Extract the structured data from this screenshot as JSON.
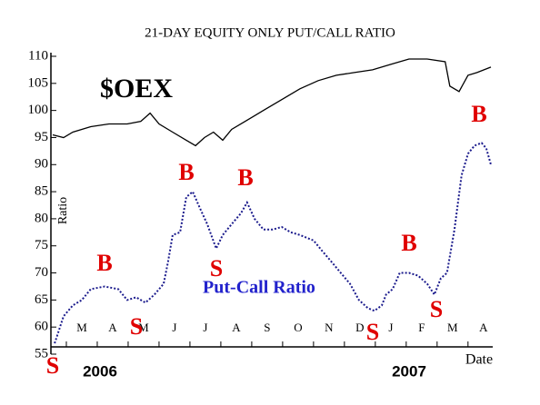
{
  "chart_data": {
    "type": "line",
    "title": "21-DAY EQUITY ONLY PUT/CALL RATIO",
    "ylabel": "Ratio",
    "xlabel": "Date",
    "xlim": [
      0,
      14.3
    ],
    "ylim": [
      55,
      110
    ],
    "yticks": [
      55,
      60,
      65,
      70,
      75,
      80,
      85,
      90,
      95,
      100,
      105,
      110
    ],
    "xticks": [
      {
        "value": 1,
        "label": "M"
      },
      {
        "value": 2,
        "label": "A"
      },
      {
        "value": 3,
        "label": "M"
      },
      {
        "value": 4,
        "label": "J"
      },
      {
        "value": 5,
        "label": "J"
      },
      {
        "value": 6,
        "label": "A"
      },
      {
        "value": 7,
        "label": "S"
      },
      {
        "value": 8,
        "label": "O"
      },
      {
        "value": 9,
        "label": "N"
      },
      {
        "value": 10,
        "label": "D"
      },
      {
        "value": 11,
        "label": "J"
      },
      {
        "value": 12,
        "label": "F"
      },
      {
        "value": 13,
        "label": "M"
      },
      {
        "value": 14,
        "label": "A"
      }
    ],
    "years": [
      "2006",
      "2007"
    ],
    "series": [
      {
        "name": "$OEX",
        "color": "#000000",
        "x": [
          0.06,
          0.41,
          0.71,
          1.29,
          1.88,
          2.47,
          2.91,
          3.21,
          3.5,
          3.94,
          4.38,
          4.68,
          4.97,
          5.26,
          5.56,
          5.85,
          6.29,
          6.88,
          7.47,
          8.06,
          8.65,
          9.24,
          9.82,
          10.41,
          11.0,
          11.59,
          12.18,
          12.76,
          12.91,
          13.21,
          13.5,
          13.79,
          14.24
        ],
        "values": [
          95.5,
          95,
          96,
          97,
          97.5,
          97.5,
          98,
          99.5,
          97.5,
          96,
          94.5,
          93.5,
          95,
          96,
          94.5,
          96.5,
          98,
          100,
          102,
          104,
          105.5,
          106.5,
          107,
          107.5,
          108.5,
          109.5,
          109.5,
          109,
          104.5,
          103.5,
          106.5,
          107,
          108
        ]
      },
      {
        "name": "Put-Call Ratio",
        "color": "#1a1a8c",
        "x": [
          0.12,
          0.41,
          0.71,
          1.0,
          1.29,
          1.74,
          2.18,
          2.47,
          2.76,
          3.06,
          3.35,
          3.65,
          3.79,
          3.94,
          4.18,
          4.38,
          4.59,
          4.82,
          5.06,
          5.35,
          5.56,
          5.85,
          6.15,
          6.35,
          6.59,
          6.88,
          7.18,
          7.47,
          7.76,
          8.06,
          8.5,
          8.79,
          9.09,
          9.38,
          9.68,
          9.97,
          10.26,
          10.47,
          10.71,
          10.85,
          11.06,
          11.29,
          11.59,
          11.88,
          12.18,
          12.41,
          12.62,
          12.82,
          13.06,
          13.29,
          13.5,
          13.71,
          13.94,
          14.09,
          14.24
        ],
        "values": [
          57,
          62,
          64,
          65,
          67,
          67.5,
          67,
          65,
          65.5,
          64.5,
          66,
          68,
          72,
          77,
          77.5,
          84,
          85,
          82,
          79,
          74.5,
          77,
          79,
          81,
          83,
          80,
          78,
          78,
          78.5,
          77.5,
          77,
          76,
          74,
          72,
          70,
          68,
          65,
          63.5,
          63,
          64,
          66,
          67,
          70,
          70,
          69.5,
          68,
          66,
          69,
          70,
          78,
          88,
          92,
          93.5,
          94,
          93,
          90
        ]
      }
    ],
    "annotations": [
      "$OEX",
      "B",
      "B",
      "B",
      "B",
      "B",
      "S",
      "S",
      "S",
      "S",
      "S"
    ]
  }
}
